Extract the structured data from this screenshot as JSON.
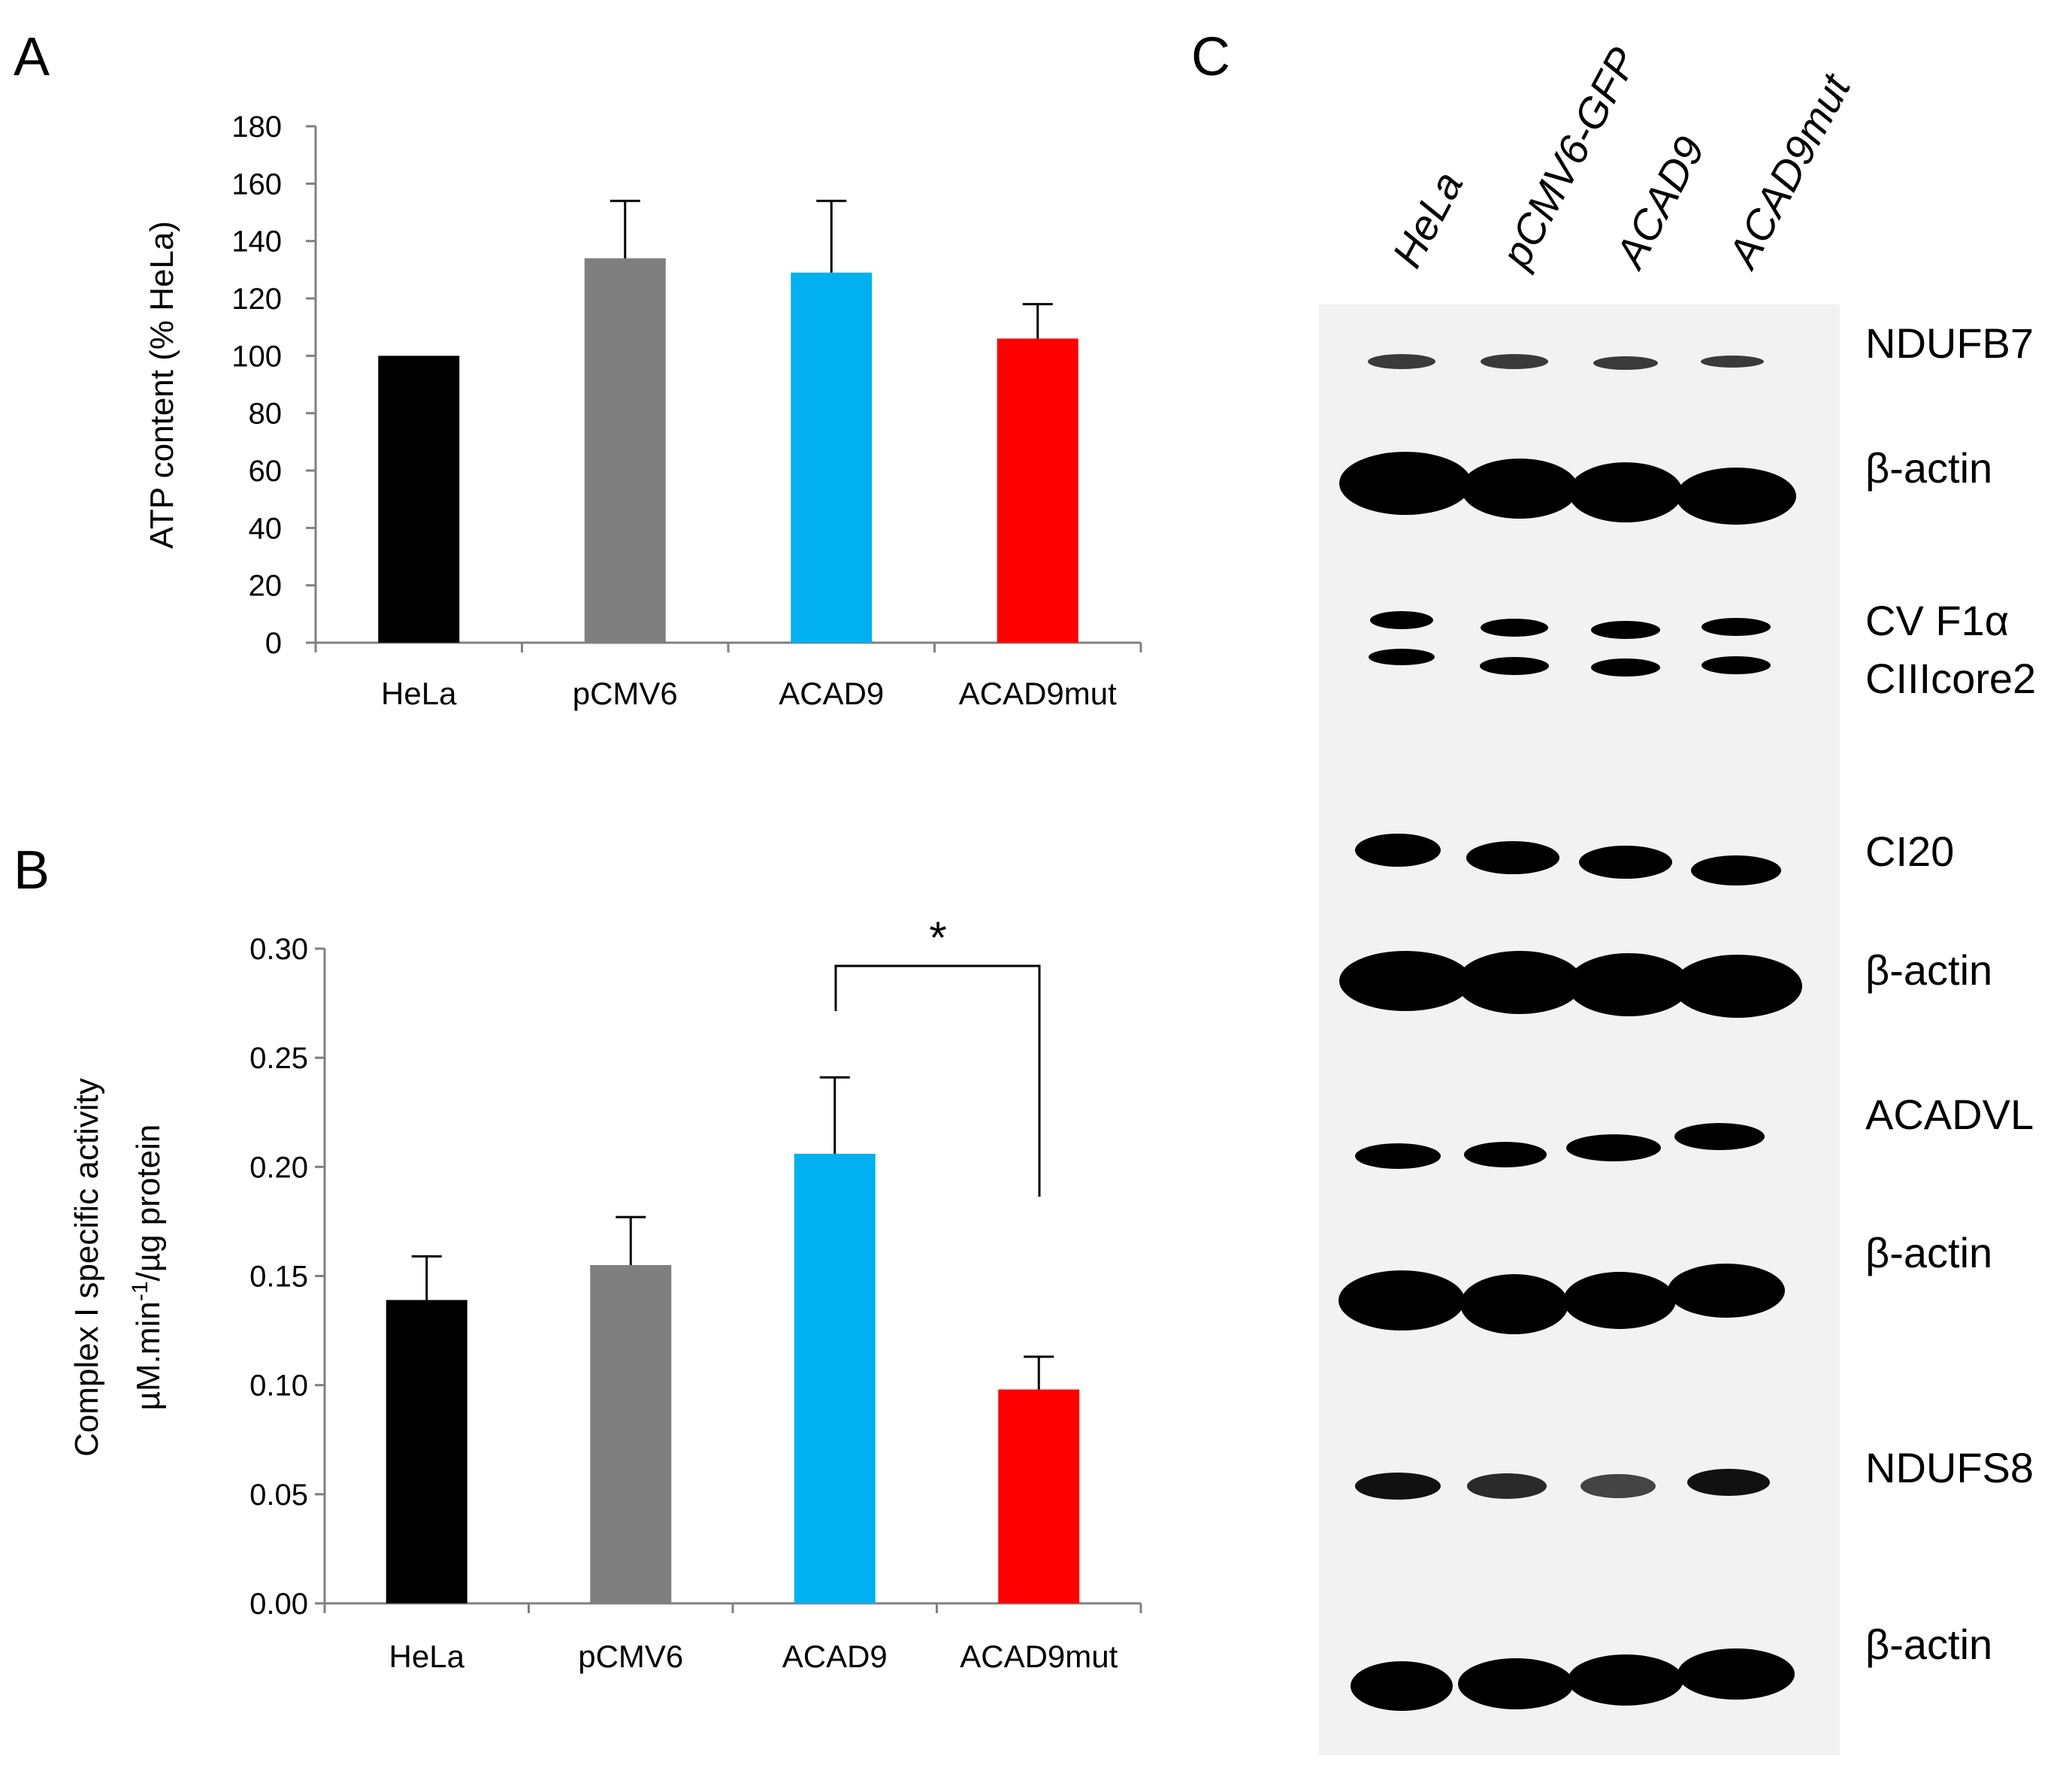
{
  "panels": {
    "a": {
      "letter": "A"
    },
    "b": {
      "letter": "B"
    },
    "c": {
      "letter": "C"
    }
  },
  "chart_data": [
    {
      "panel": "A",
      "type": "bar",
      "ylabel": "ATP content (% HeLa)",
      "xlabel": "",
      "categories": [
        "HeLa",
        "pCMV6",
        "ACAD9",
        "ACAD9mut"
      ],
      "values": [
        100,
        134,
        129,
        106
      ],
      "error": [
        0,
        20,
        25,
        12
      ],
      "colors": [
        "#000000",
        "#7f7f7f",
        "#00b0f0",
        "#ff0000"
      ],
      "ylim": [
        0,
        180
      ],
      "yticks": [
        "0",
        "20",
        "40",
        "60",
        "80",
        "100",
        "120",
        "140",
        "160",
        "180"
      ],
      "ytick_values": [
        0,
        20,
        40,
        60,
        80,
        100,
        120,
        140,
        160,
        180
      ],
      "grid": false
    },
    {
      "panel": "B",
      "type": "bar",
      "ylabel": "Complex I specific activity",
      "ylabel2_pre": "µM.min",
      "ylabel2_sup": "-1",
      "ylabel2_post": "/µg protein",
      "xlabel": "",
      "categories": [
        "HeLa",
        "pCMV6",
        "ACAD9",
        "ACAD9mut"
      ],
      "values": [
        0.139,
        0.155,
        0.206,
        0.098
      ],
      "error": [
        0.02,
        0.022,
        0.035,
        0.015
      ],
      "colors": [
        "#000000",
        "#7f7f7f",
        "#00b0f0",
        "#ff0000"
      ],
      "ylim": [
        0,
        0.3
      ],
      "yticks": [
        "0.00",
        "0.05",
        "0.10",
        "0.15",
        "0.20",
        "0.25",
        "0.30"
      ],
      "ytick_values": [
        0,
        0.05,
        0.1,
        0.15,
        0.2,
        0.25,
        0.3
      ],
      "grid": false,
      "significance": {
        "between": [
          "ACAD9",
          "ACAD9mut"
        ],
        "label": "*"
      }
    }
  ],
  "blot": {
    "lanes": [
      "HeLa",
      "pCMV6-GFP",
      "ACAD9",
      "ACAD9mut"
    ],
    "labels": [
      {
        "text": "NDUFB7"
      },
      {
        "text": "β-actin"
      },
      {
        "text": "CV F1α"
      },
      {
        "text": "CIIIcore2"
      },
      {
        "text": "CI20"
      },
      {
        "text": "β-actin"
      },
      {
        "text": "ACADVL"
      },
      {
        "text": "β-actin"
      },
      {
        "text": "NDUFS8"
      },
      {
        "text": "β-actin"
      }
    ]
  }
}
